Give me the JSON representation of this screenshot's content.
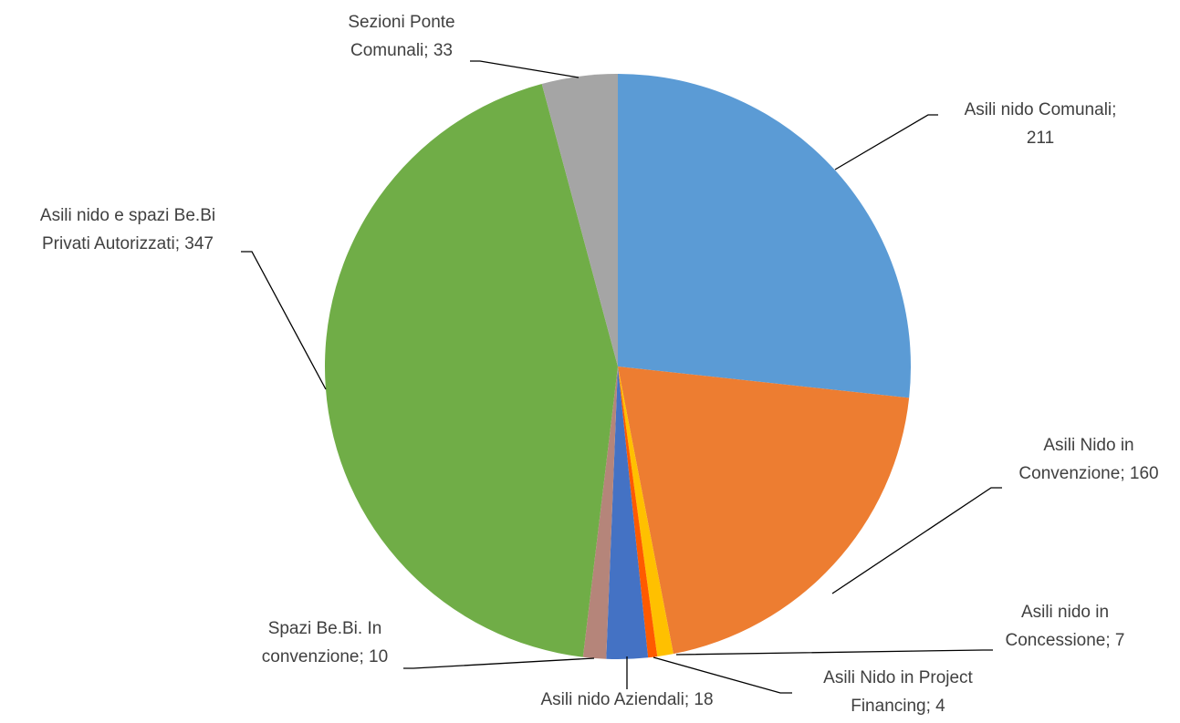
{
  "chart_data": {
    "type": "pie",
    "title": "",
    "slices": [
      {
        "label": "Asili nido Comunali",
        "value": 211,
        "color": "#5B9BD5"
      },
      {
        "label": "Asili Nido in Convenzione",
        "value": 160,
        "color": "#ED7D31"
      },
      {
        "label": "Asili nido in Concessione",
        "value": 7,
        "color": "#FFC000"
      },
      {
        "label": "Asili Nido in Project Financing",
        "value": 4,
        "color": "#FF5A00"
      },
      {
        "label": "Asili nido Aziendali",
        "value": 18,
        "color": "#4472C4"
      },
      {
        "label": "Spazi Be.Bi. In convenzione",
        "value": 10,
        "color": "#B5857A"
      },
      {
        "label": "Asili nido e spazi Be.Bi Privati Autorizzati",
        "value": 347,
        "color": "#70AD47"
      },
      {
        "label": "Sezioni Ponte Comunali",
        "value": 33,
        "color": "#A5A5A5"
      }
    ],
    "data_labels": [
      {
        "lines": [
          "Asili nido Comunali;",
          "211"
        ]
      },
      {
        "lines": [
          "Asili Nido in",
          "Convenzione; 160"
        ]
      },
      {
        "lines": [
          "Asili nido in",
          "Concessione; 7"
        ]
      },
      {
        "lines": [
          "Asili Nido in Project",
          "Financing; 4"
        ]
      },
      {
        "lines": [
          "Asili nido Aziendali; 18"
        ]
      },
      {
        "lines": [
          "Spazi Be.Bi. In",
          "convenzione; 10"
        ]
      },
      {
        "lines": [
          "Asili nido e spazi Be.Bi",
          "Privati Autorizzati; 347"
        ]
      },
      {
        "lines": [
          "Sezioni Ponte",
          "Comunali; 33"
        ]
      }
    ],
    "legend": "none"
  }
}
